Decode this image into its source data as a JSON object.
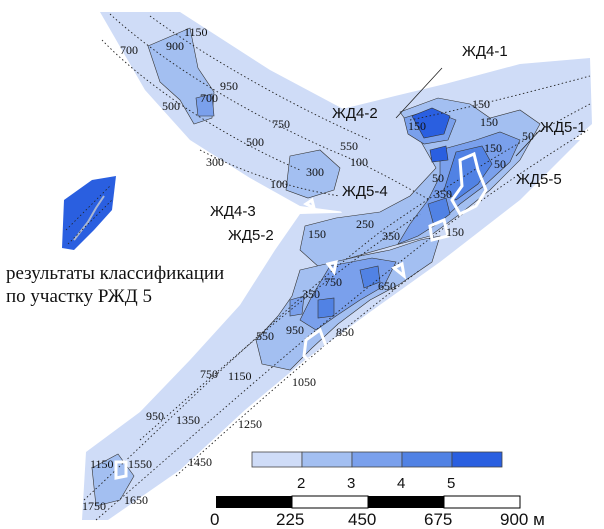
{
  "wells": [
    "ЖД4-1",
    "ЖД4-2",
    "ЖД5-1",
    "ЖД5-4",
    "ЖД5-5",
    "ЖД4-3",
    "ЖД5-2"
  ],
  "contour_labels": [
    "1150",
    "900",
    "700",
    "950",
    "700",
    "500",
    "750",
    "500",
    "300",
    "550",
    "100",
    "300",
    "100",
    "150",
    "150",
    "150",
    "50",
    "50",
    "350",
    "150",
    "50",
    "250",
    "150",
    "350",
    "150",
    "750",
    "650",
    "350",
    "950",
    "850",
    "550",
    "1150",
    "1050",
    "750",
    "1250",
    "950",
    "1350",
    "1450",
    "1150",
    "1550",
    "1650",
    "1750"
  ],
  "caption": {
    "line1": "результаты классификации",
    "line2": "по участку РЖД 5"
  },
  "legend": {
    "classes": [
      {
        "label": "",
        "color": "#cfdcf7"
      },
      {
        "label": "2",
        "color": "#a3bff1"
      },
      {
        "label": "3",
        "color": "#7aa0ec"
      },
      {
        "label": "4",
        "color": "#5182e4"
      },
      {
        "label": "5",
        "color": "#2a5fe0"
      }
    ]
  },
  "scale_bar": {
    "labels": [
      "0",
      "225",
      "450",
      "675",
      "900 м"
    ]
  },
  "colors": {
    "class1": "#cfdcf7",
    "class2": "#a3bff1",
    "class3": "#7aa0ec",
    "class4": "#5182e4",
    "class5": "#2a5fe0"
  }
}
